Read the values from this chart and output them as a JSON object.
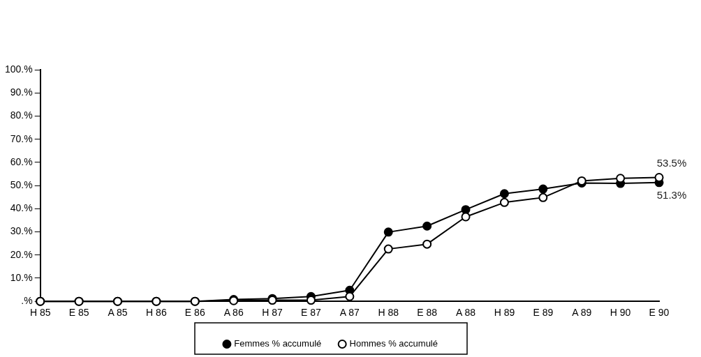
{
  "chart_data": {
    "type": "line",
    "categories": [
      "H 85",
      "E 85",
      "A 85",
      "H 86",
      "E 86",
      "A 86",
      "H 87",
      "E 87",
      "A 87",
      "H 88",
      "E 88",
      "A 88",
      "H 89",
      "E 89",
      "A 89",
      "H 90",
      "E 90"
    ],
    "series": [
      {
        "name": "Femmes % accumulé",
        "color": "#000000",
        "values": [
          0,
          0,
          0,
          0,
          0,
          0.8,
          1.2,
          2.1,
          4.8,
          29.9,
          32.5,
          39.6,
          46.5,
          48.5,
          51.1,
          50.9,
          51.3
        ]
      },
      {
        "name": "Hommes % accumulé",
        "color": "#000000",
        "values": [
          0,
          0,
          0,
          0,
          0,
          0.3,
          0.5,
          0.5,
          2.1,
          22.6,
          24.7,
          36.5,
          42.7,
          44.8,
          52.0,
          53.1,
          53.5
        ]
      }
    ],
    "ylim": [
      0,
      100
    ],
    "yticks": [
      {
        "value": 0,
        "label": ".%"
      },
      {
        "value": 10,
        "label": "10.%"
      },
      {
        "value": 20,
        "label": "20.%"
      },
      {
        "value": 30,
        "label": "30.%"
      },
      {
        "value": 40,
        "label": "40.%"
      },
      {
        "value": 50,
        "label": "50.%"
      },
      {
        "value": 60,
        "label": "60.%"
      },
      {
        "value": 70,
        "label": "70.%"
      },
      {
        "value": 80,
        "label": "80.%"
      },
      {
        "value": 90,
        "label": "90.%"
      },
      {
        "value": 100,
        "label": "100.%"
      }
    ],
    "annotations": [
      {
        "text": "53.5%",
        "x": "E 90",
        "y": 53.5
      },
      {
        "text": "51.3%",
        "x": "E 90",
        "y": 51.3
      }
    ],
    "grid": false,
    "legend": "bottom",
    "marker": "circle",
    "line_style": "solid"
  }
}
